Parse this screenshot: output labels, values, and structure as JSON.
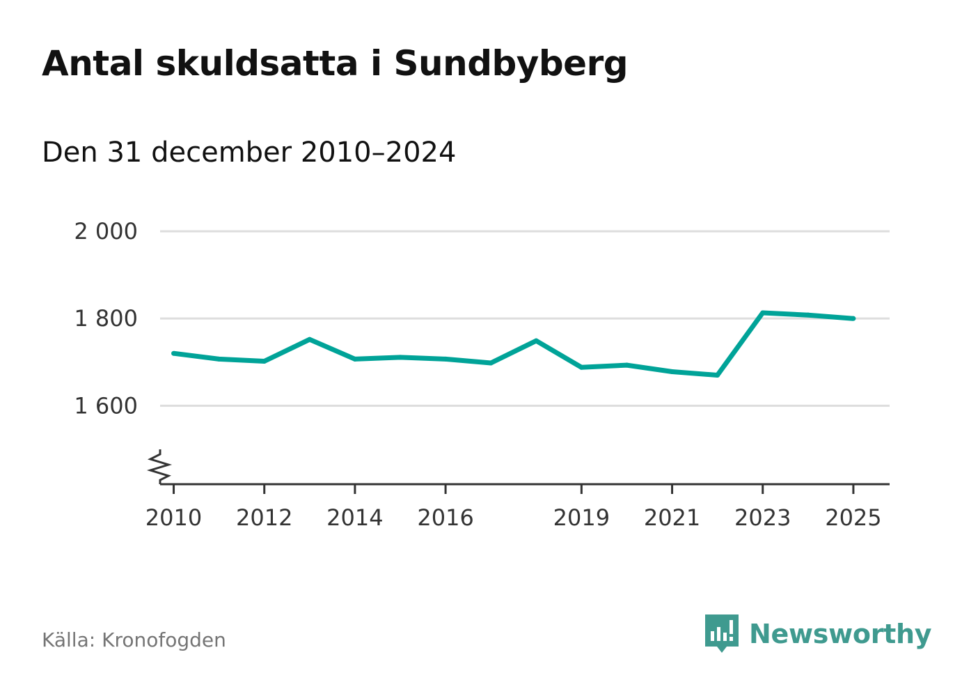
{
  "header": {
    "title": "Antal skuldsatta i Sundbyberg",
    "subtitle": "Den 31 december 2010–2024"
  },
  "footer": {
    "source": "Källa: Kronofogden",
    "brand": "Newsworthy"
  },
  "colors": {
    "line": "#00a398",
    "grid": "#dddddd",
    "axis": "#333333",
    "brand": "#3f9a8f"
  },
  "chart_data": {
    "type": "line",
    "title": "Antal skuldsatta i Sundbyberg",
    "subtitle": "Den 31 december 2010–2024",
    "xlabel": "",
    "ylabel": "",
    "x": [
      2010,
      2011,
      2012,
      2013,
      2014,
      2015,
      2016,
      2017,
      2018,
      2019,
      2020,
      2021,
      2022,
      2023,
      2024,
      2025
    ],
    "series": [
      {
        "name": "Antal skuldsatta",
        "values": [
          1720,
          1707,
          1702,
          1752,
          1707,
          1711,
          1707,
          1698,
          1749,
          1688,
          1693,
          1678,
          1670,
          1813,
          1808,
          1800
        ]
      }
    ],
    "xlim": [
      2009.7,
      2025.8
    ],
    "ylim": [
      1420,
      2000
    ],
    "y_ticks": [
      1600,
      1800,
      2000
    ],
    "y_tick_labels": [
      "1 600",
      "1 800",
      "2 000"
    ],
    "x_ticks": [
      2010,
      2012,
      2014,
      2016,
      2019,
      2021,
      2023,
      2025
    ],
    "x_tick_labels": [
      "2010",
      "2012",
      "2014",
      "2016",
      "2019",
      "2021",
      "2023",
      "2025"
    ],
    "axis_break": true,
    "grid": true,
    "legend": "none"
  }
}
